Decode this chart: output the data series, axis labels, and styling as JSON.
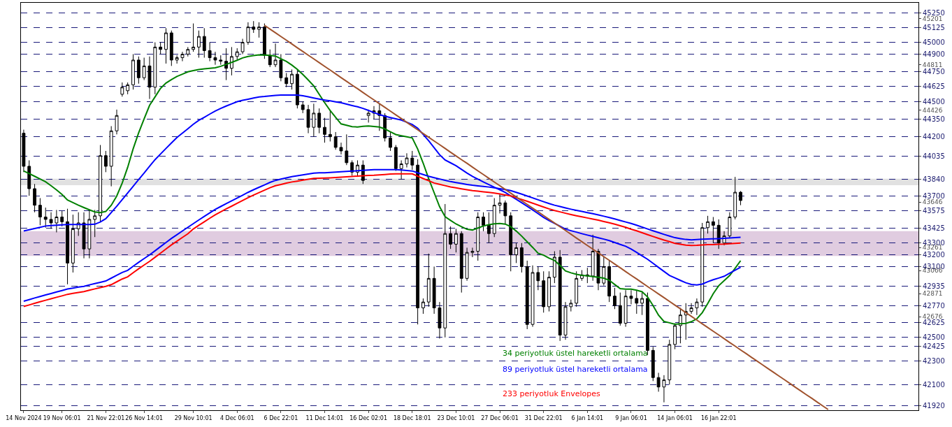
{
  "chart_data": {
    "type": "candlestick",
    "categories": [
      "14 Nov 2024",
      null,
      null,
      null,
      null,
      null,
      null,
      "19 Nov 06:01",
      null,
      null,
      null,
      null,
      null,
      null,
      null,
      "21 Nov 22:01",
      null,
      null,
      null,
      null,
      null,
      null,
      "26 Nov 14:01",
      null,
      null,
      null,
      null,
      null,
      null,
      null,
      null,
      "29 Nov 10:01",
      null,
      null,
      null,
      null,
      null,
      null,
      null,
      "4 Dec 06:01",
      null,
      null,
      null,
      null,
      null,
      null,
      null,
      "6 Dec 22:01",
      null,
      null,
      null,
      null,
      null,
      null,
      null,
      "11 Dec 14:01",
      null,
      null,
      null,
      null,
      null,
      null,
      null,
      "16 Dec 02:01",
      null,
      null,
      null,
      null,
      null,
      null,
      null,
      "18 Dec 18:01",
      null,
      null,
      null,
      null,
      null,
      null,
      null,
      "23 Dec 10:01",
      null,
      null,
      null,
      null,
      null,
      null,
      null,
      "27 Dec 06:01",
      null,
      null,
      null,
      null,
      null,
      null,
      null,
      "31 Dec 22:01",
      null,
      null,
      null,
      null,
      null,
      null,
      null,
      "6 Jan 14:01",
      null,
      null,
      null,
      null,
      null,
      null,
      null,
      "9 Jan 06:01",
      null,
      null,
      null,
      null,
      null,
      null,
      null,
      "14 Jan 06:01",
      null,
      null,
      null,
      null,
      null,
      null,
      null,
      "16 Jan 22:01",
      null,
      null,
      null,
      null,
      null,
      null,
      null,
      null,
      null,
      null,
      null,
      null,
      null,
      null,
      null,
      null,
      null,
      null,
      null,
      null,
      null,
      null,
      null,
      null,
      null,
      null,
      null,
      null,
      null,
      null,
      null,
      null,
      null,
      null,
      null,
      null
    ],
    "ohlc": [
      [
        44230,
        44260,
        43900,
        43950
      ],
      [
        43950,
        44000,
        43700,
        43760
      ],
      [
        43760,
        43800,
        43560,
        43620
      ],
      [
        43620,
        43680,
        43450,
        43520
      ],
      [
        43520,
        43600,
        43430,
        43500
      ],
      [
        43500,
        43560,
        43420,
        43470
      ],
      [
        43470,
        43580,
        43390,
        43520
      ],
      [
        43520,
        43570,
        43440,
        43480
      ],
      [
        43480,
        43590,
        42950,
        43130
      ],
      [
        43130,
        43540,
        43050,
        43420
      ],
      [
        43420,
        43560,
        43360,
        43470
      ],
      [
        43470,
        43560,
        43170,
        43250
      ],
      [
        43250,
        43580,
        43170,
        43500
      ],
      [
        43500,
        43580,
        43350,
        43530
      ],
      [
        43530,
        44130,
        43480,
        44040
      ],
      [
        44040,
        44080,
        43900,
        43950
      ],
      [
        43950,
        44290,
        43780,
        44250
      ],
      [
        44250,
        44430,
        44220,
        44380
      ],
      [
        44560,
        44660,
        44540,
        44620
      ],
      [
        44590,
        44660,
        44560,
        44640
      ],
      [
        44640,
        44900,
        44600,
        44850
      ],
      [
        44850,
        44880,
        44650,
        44700
      ],
      [
        44700,
        44870,
        44680,
        44800
      ],
      [
        44800,
        44880,
        44520,
        44620
      ],
      [
        44620,
        45000,
        44560,
        44960
      ],
      [
        44960,
        45000,
        44900,
        44940
      ],
      [
        44940,
        45120,
        44820,
        45080
      ],
      [
        45080,
        45100,
        44800,
        44850
      ],
      [
        44850,
        44890,
        44820,
        44870
      ],
      [
        44870,
        44920,
        44840,
        44900
      ],
      [
        44900,
        44960,
        44880,
        44940
      ],
      [
        44940,
        45160,
        44920,
        44960
      ],
      [
        44960,
        45100,
        44870,
        45050
      ],
      [
        45050,
        45120,
        44870,
        44930
      ],
      [
        44930,
        45000,
        44840,
        44870
      ],
      [
        44870,
        44920,
        44810,
        44850
      ],
      [
        44850,
        44890,
        44810,
        44840
      ],
      [
        44840,
        44950,
        44680,
        44780
      ],
      [
        44780,
        44960,
        44720,
        44880
      ],
      [
        44880,
        44950,
        44850,
        44920
      ],
      [
        44920,
        45030,
        44900,
        45000
      ],
      [
        45000,
        45170,
        44980,
        45130
      ],
      [
        45130,
        45180,
        45080,
        45110
      ],
      [
        45110,
        45170,
        45040,
        45130
      ],
      [
        45130,
        45160,
        44860,
        44890
      ],
      [
        44890,
        44940,
        44790,
        44810
      ],
      [
        44810,
        44990,
        44790,
        44850
      ],
      [
        44850,
        44900,
        44670,
        44700
      ],
      [
        44700,
        44740,
        44620,
        44650
      ],
      [
        44650,
        44770,
        44600,
        44730
      ],
      [
        44730,
        44770,
        44440,
        44470
      ],
      [
        44470,
        44500,
        44400,
        44430
      ],
      [
        44430,
        44470,
        44230,
        44280
      ],
      [
        44280,
        44480,
        44200,
        44400
      ],
      [
        44400,
        44440,
        44230,
        44280
      ],
      [
        44280,
        44360,
        44150,
        44220
      ],
      [
        44220,
        44420,
        44160,
        44200
      ],
      [
        44200,
        44240,
        44090,
        44110
      ],
      [
        44110,
        44150,
        44050,
        44080
      ],
      [
        44080,
        44220,
        43960,
        43980
      ],
      [
        43980,
        44000,
        43870,
        43900
      ],
      [
        43900,
        44000,
        43860,
        43960
      ],
      [
        43960,
        44000,
        43800,
        43830
      ],
      [
        44380,
        44430,
        44320,
        44400
      ],
      [
        44400,
        44460,
        44350,
        44420
      ],
      [
        44420,
        44480,
        44250,
        44380
      ],
      [
        44380,
        44400,
        44160,
        44190
      ],
      [
        44190,
        44240,
        44080,
        44110
      ],
      [
        44110,
        44130,
        43910,
        43930
      ],
      [
        43930,
        44000,
        43840,
        43970
      ],
      [
        43970,
        44060,
        43940,
        44020
      ],
      [
        44020,
        44080,
        43920,
        43960
      ],
      [
        43960,
        44010,
        42610,
        42750
      ],
      [
        42750,
        42830,
        42700,
        42800
      ],
      [
        42800,
        43210,
        42760,
        43000
      ],
      [
        43000,
        43100,
        42700,
        42750
      ],
      [
        42750,
        42800,
        42490,
        42580
      ],
      [
        42580,
        43630,
        42500,
        43380
      ],
      [
        43380,
        43440,
        43250,
        43290
      ],
      [
        43290,
        43420,
        43220,
        43380
      ],
      [
        43380,
        43400,
        42880,
        43000
      ],
      [
        43000,
        43260,
        42980,
        43220
      ],
      [
        43220,
        43260,
        43180,
        43230
      ],
      [
        43230,
        43560,
        43150,
        43520
      ],
      [
        43520,
        43560,
        43400,
        43450
      ],
      [
        43450,
        43560,
        43300,
        43380
      ],
      [
        43380,
        43680,
        43350,
        43620
      ],
      [
        43620,
        43720,
        43550,
        43640
      ],
      [
        43640,
        43660,
        43460,
        43530
      ],
      [
        43530,
        43560,
        43060,
        43200
      ],
      [
        43200,
        43300,
        43130,
        43260
      ],
      [
        43260,
        43300,
        43050,
        43100
      ],
      [
        43100,
        43150,
        42570,
        42610
      ],
      [
        42610,
        43110,
        42590,
        43050
      ],
      [
        43050,
        43100,
        42900,
        42980
      ],
      [
        42980,
        43060,
        42710,
        42760
      ],
      [
        42760,
        43060,
        42720,
        43010
      ],
      [
        43010,
        43230,
        42960,
        43180
      ],
      [
        43180,
        43240,
        42470,
        42520
      ],
      [
        42520,
        42800,
        42480,
        42760
      ],
      [
        42760,
        42820,
        42720,
        42790
      ],
      [
        42790,
        43060,
        42760,
        43000
      ],
      [
        43000,
        43070,
        42980,
        43030
      ],
      [
        43030,
        43090,
        42960,
        43020
      ],
      [
        43020,
        43370,
        42980,
        43230
      ],
      [
        43230,
        43250,
        42900,
        42960
      ],
      [
        42960,
        43180,
        42940,
        43100
      ],
      [
        43100,
        43150,
        42800,
        42850
      ],
      [
        42850,
        42920,
        42740,
        42770
      ],
      [
        42770,
        42880,
        42600,
        42620
      ],
      [
        42620,
        42900,
        42590,
        42850
      ],
      [
        42850,
        42900,
        42780,
        42830
      ],
      [
        42830,
        42900,
        42700,
        42790
      ],
      [
        42790,
        42880,
        42690,
        42830
      ],
      [
        42830,
        42880,
        42350,
        42390
      ],
      [
        42390,
        42420,
        42130,
        42160
      ],
      [
        42160,
        42200,
        42040,
        42080
      ],
      [
        42080,
        42180,
        41950,
        42140
      ],
      [
        42140,
        42480,
        42100,
        42440
      ],
      [
        42440,
        42620,
        42400,
        42600
      ],
      [
        42600,
        42750,
        42450,
        42690
      ],
      [
        42690,
        42790,
        42480,
        42720
      ],
      [
        42720,
        42790,
        42700,
        42750
      ],
      [
        42750,
        42830,
        42690,
        42800
      ],
      [
        42800,
        43470,
        42760,
        43430
      ],
      [
        43430,
        43530,
        43380,
        43480
      ],
      [
        43480,
        43520,
        43300,
        43450
      ],
      [
        43450,
        43500,
        43250,
        43300
      ],
      [
        43300,
        43400,
        43280,
        43360
      ],
      [
        43360,
        43560,
        43340,
        43520
      ],
      [
        43520,
        43860,
        43500,
        43730
      ],
      [
        43730,
        43740,
        43620,
        43660
      ],
      null,
      null,
      null,
      null,
      null,
      null,
      null,
      null,
      null,
      null,
      null,
      null,
      null,
      null,
      null,
      null,
      null,
      null,
      null,
      null,
      null,
      null,
      null,
      null,
      null,
      null,
      null,
      null,
      null,
      null,
      null,
      null
    ],
    "series": [
      {
        "type": "line",
        "name": "34 periyotluk üstel hareketli ortalama",
        "color": "#008000",
        "values": [
          43910,
          43888,
          43865,
          43842,
          43818,
          43785,
          43750,
          43711,
          43664,
          43642,
          43620,
          43600,
          43581,
          43563,
          43557,
          43567,
          43620,
          43698,
          43808,
          43941,
          44098,
          44233,
          44352,
          44466,
          44538,
          44610,
          44655,
          44684,
          44711,
          44730,
          44750,
          44761,
          44769,
          44775,
          44780,
          44785,
          44797,
          44813,
          44830,
          44848,
          44868,
          44880,
          44888,
          44894,
          44892,
          44889,
          44884,
          44861,
          44838,
          44807,
          44771,
          44728,
          44681,
          44631,
          44559,
          44488,
          44423,
          44364,
          44309,
          44297,
          44285,
          44283,
          44288,
          44292,
          44287,
          44282,
          44266,
          44242,
          44219,
          44209,
          44200,
          44190,
          44095,
          43976,
          43845,
          43726,
          43607,
          43523,
          43491,
          43461,
          43438,
          43416,
          43410,
          43427,
          43444,
          43455,
          43463,
          43466,
          43460,
          43438,
          43401,
          43358,
          43310,
          43263,
          43213,
          43197,
          43171,
          43152,
          43110,
          43063,
          43047,
          43035,
          43026,
          43021,
          43016,
          43010,
          43002,
          42984,
          42948,
          42913,
          42909,
          42909,
          42900,
          42887,
          42843,
          42770,
          42689,
          42635,
          42624,
          42612,
          42615,
          42619,
          42633,
          42657,
          42710,
          42787,
          42870,
          42938,
          42981,
          43024,
          43086,
          43150,
          null,
          null,
          null,
          null,
          null,
          null,
          null,
          null,
          null,
          null,
          null,
          null,
          null,
          null,
          null,
          null,
          null,
          null,
          null,
          null,
          null,
          null,
          null,
          null,
          null,
          null,
          null,
          null,
          null,
          null,
          null,
          null
        ]
      },
      {
        "type": "line",
        "name": "89 periyotluk üstel hareketli ortalama",
        "color": "#0000ff",
        "values": [
          43402,
          43412,
          43423,
          43433,
          43444,
          43448,
          43451,
          43454,
          43457,
          43457,
          43457,
          43457,
          43457,
          43459,
          43478,
          43506,
          43558,
          43611,
          43667,
          43724,
          43780,
          43837,
          43893,
          43950,
          44006,
          44054,
          44101,
          44148,
          44194,
          44231,
          44268,
          44306,
          44339,
          44365,
          44392,
          44418,
          44440,
          44460,
          44479,
          44497,
          44509,
          44518,
          44528,
          44537,
          44541,
          44546,
          44551,
          44554,
          44554,
          44554,
          44554,
          44548,
          44538,
          44528,
          44519,
          44511,
          44504,
          44496,
          44488,
          44476,
          44465,
          44454,
          44440,
          44423,
          44405,
          44388,
          44374,
          44363,
          44352,
          44341,
          44323,
          44304,
          44272,
          44220,
          44166,
          44107,
          44048,
          44003,
          43979,
          43955,
          43924,
          43893,
          43864,
          43841,
          43817,
          43795,
          43773,
          43751,
          43728,
          43699,
          43670,
          43641,
          43611,
          43580,
          43548,
          43517,
          43490,
          43466,
          43442,
          43417,
          43404,
          43392,
          43379,
          43367,
          43356,
          43344,
          43333,
          43320,
          43304,
          43288,
          43272,
          43249,
          43220,
          43191,
          43162,
          43128,
          43093,
          43059,
          43025,
          43004,
          42983,
          42963,
          42949,
          42945,
          42952,
          42972,
          42989,
          43003,
          43018,
          43044,
          43069,
          43095,
          null,
          null,
          null,
          null,
          null,
          null,
          null,
          null,
          null,
          null,
          null,
          null,
          null,
          null,
          null,
          null,
          null,
          null,
          null,
          null,
          null,
          null,
          null,
          null,
          null,
          null,
          null,
          null,
          null,
          null,
          null,
          null
        ]
      },
      {
        "type": "line",
        "color": "#0000ff",
        "values": [
          42807,
          42820,
          42834,
          42847,
          42860,
          42872,
          42885,
          42897,
          42910,
          42918,
          42926,
          42933,
          42945,
          42956,
          42967,
          42978,
          43002,
          43026,
          43050,
          43068,
          43103,
          43136,
          43168,
          43199,
          43234,
          43269,
          43304,
          43339,
          43370,
          43402,
          43433,
          43464,
          43495,
          43525,
          43555,
          43584,
          43609,
          43634,
          43657,
          43681,
          43705,
          43729,
          43751,
          43772,
          43792,
          43813,
          43830,
          43841,
          43852,
          43862,
          43869,
          43877,
          43885,
          43892,
          43894,
          43895,
          43897,
          43900,
          43903,
          43906,
          43909,
          43912,
          43915,
          43918,
          43922,
          43922,
          43922,
          43922,
          43922,
          43918,
          43914,
          43910,
          43895,
          43880,
          43865,
          43853,
          43842,
          43831,
          43820,
          43812,
          43804,
          43796,
          43789,
          43784,
          43779,
          43774,
          43768,
          43760,
          43752,
          43744,
          43729,
          43714,
          43698,
          43682,
          43666,
          43650,
          43634,
          43620,
          43609,
          43597,
          43586,
          43576,
          43567,
          43557,
          43548,
          43538,
          43527,
          43516,
          43504,
          43491,
          43478,
          43465,
          43451,
          43435,
          43419,
          43403,
          43388,
          43373,
          43359,
          43345,
          43337,
          43330,
          43327,
          43329,
          43332,
          43334,
          43335,
          43337,
          43339,
          43342,
          43345,
          43348,
          null,
          null,
          null,
          null,
          null,
          null,
          null,
          null,
          null,
          null,
          null,
          null,
          null,
          null,
          null,
          null,
          null,
          null,
          null,
          null,
          null,
          null,
          null,
          null,
          null,
          null,
          null,
          null,
          null,
          null,
          null,
          null
        ]
      },
      {
        "type": "line",
        "name": "233 periyotluk Envelopes",
        "color": "#ff0000",
        "values": [
          42762,
          42775,
          42789,
          42802,
          42815,
          42827,
          42840,
          42852,
          42865,
          42873,
          42881,
          42888,
          42900,
          42911,
          42922,
          42933,
          42947,
          42971,
          42995,
          43013,
          43048,
          43081,
          43113,
          43144,
          43179,
          43214,
          43249,
          43284,
          43315,
          43347,
          43378,
          43419,
          43450,
          43480,
          43510,
          43539,
          43564,
          43589,
          43612,
          43636,
          43660,
          43684,
          43706,
          43727,
          43747,
          43768,
          43785,
          43796,
          43807,
          43817,
          43824,
          43832,
          43840,
          43847,
          43849,
          43850,
          43852,
          43855,
          43858,
          43861,
          43864,
          43867,
          43870,
          43873,
          43874,
          43877,
          43880,
          43884,
          43886,
          43886,
          43886,
          43886,
          43866,
          43846,
          43827,
          43808,
          43797,
          43786,
          43775,
          43767,
          43759,
          43751,
          43744,
          43739,
          43734,
          43729,
          43723,
          43715,
          43707,
          43699,
          43684,
          43669,
          43653,
          43637,
          43621,
          43605,
          43589,
          43575,
          43564,
          43552,
          43541,
          43531,
          43522,
          43512,
          43503,
          43493,
          43482,
          43471,
          43459,
          43446,
          43433,
          43417,
          43403,
          43387,
          43371,
          43355,
          43340,
          43325,
          43311,
          43297,
          43289,
          43282,
          43279,
          43281,
          43284,
          43286,
          43287,
          43289,
          43291,
          43294,
          43297,
          43300,
          null,
          null,
          null,
          null,
          null,
          null,
          null,
          null,
          null,
          null,
          null,
          null,
          null,
          null,
          null,
          null,
          null,
          null,
          null,
          null,
          null,
          null,
          null,
          null,
          null,
          null,
          null,
          null,
          null,
          null,
          null,
          null
        ]
      },
      {
        "type": "line",
        "color": "#a0522d",
        "values": [
          null,
          null,
          null,
          null,
          null,
          null,
          null,
          null,
          null,
          null,
          null,
          null,
          null,
          null,
          null,
          null,
          null,
          null,
          null,
          null,
          null,
          null,
          null,
          null,
          null,
          null,
          null,
          null,
          null,
          null,
          null,
          null,
          null,
          null,
          null,
          null,
          null,
          null,
          null,
          null,
          null,
          null,
          null,
          null,
          45144,
          45112,
          45081,
          45049,
          45018,
          44986,
          44954,
          44923,
          44891,
          44860,
          44828,
          44796,
          44765,
          44733,
          44701,
          44670,
          44638,
          44607,
          44575,
          44543,
          44512,
          44480,
          44449,
          44417,
          44385,
          44354,
          44322,
          44291,
          44259,
          44227,
          44196,
          44164,
          44133,
          44101,
          44069,
          44038,
          44006,
          43975,
          43943,
          43911,
          43880,
          43848,
          43816,
          43785,
          43753,
          43722,
          43690,
          43658,
          43627,
          43595,
          43564,
          43532,
          43500,
          43469,
          43437,
          43406,
          43374,
          43342,
          43311,
          43279,
          43248,
          43216,
          43184,
          43153,
          43121,
          43090,
          43058,
          43026,
          42995,
          42963,
          42931,
          42900,
          42868,
          42837,
          42805,
          42773,
          42742,
          42710,
          42679,
          42647,
          42615,
          42584,
          42552,
          42521,
          42489,
          42457,
          42426,
          42394,
          42363,
          42331,
          42300,
          42268,
          42236,
          42205,
          42173,
          42142,
          42110,
          42078,
          42047,
          42015,
          41984,
          41952,
          41920,
          41889,
          null,
          null,
          null,
          null,
          null,
          null,
          null,
          null,
          null,
          null,
          null,
          null,
          null,
          null,
          null,
          null
        ]
      }
    ],
    "bands": [
      {
        "axis": "y",
        "from": 43790,
        "to": 43845,
        "color": "#d9d9d9"
      },
      {
        "axis": "y",
        "from": 43190,
        "to": 43400,
        "color": "#d8bfd8"
      }
    ],
    "ylim": [
      41883,
      45335
    ],
    "yticks": [
      45250,
      45125,
      45000,
      44900,
      44750,
      44625,
      44500,
      44350,
      44200,
      44035,
      43840,
      43700,
      43575,
      43425,
      43300,
      43200,
      43100,
      42935,
      42770,
      42625,
      42500,
      42425,
      42300,
      42100,
      41920
    ],
    "y2lim": [
      41883,
      45335
    ],
    "y2ticks": [
      45201,
      44811,
      44426,
      43646,
      43261,
      43066,
      42871,
      42676
    ],
    "grid": "y"
  }
}
